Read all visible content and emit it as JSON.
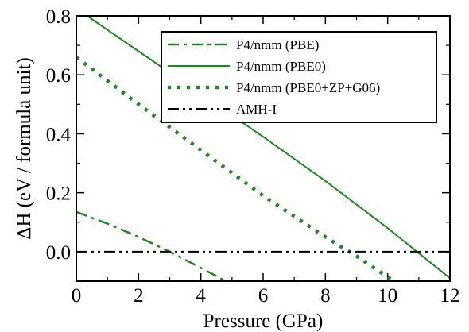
{
  "chart_data": {
    "type": "line",
    "title": "",
    "xlabel": "Pressure (GPa)",
    "ylabel": "ΔH (eV / formula unit)",
    "xlim": [
      0,
      12
    ],
    "ylim": [
      -0.1,
      0.8
    ],
    "xticks": [
      0,
      2,
      4,
      6,
      8,
      10,
      12
    ],
    "yticks": [
      0.0,
      0.2,
      0.4,
      0.6,
      0.8
    ],
    "xtick_labels": [
      "0",
      "2",
      "4",
      "6",
      "8",
      "10",
      "12"
    ],
    "ytick_labels": [
      "0.0",
      "0.2",
      "0.4",
      "0.6",
      "0.8"
    ],
    "grid": false,
    "legend_position": "top-right",
    "series": [
      {
        "name": "P4/nmm (PBE)",
        "color": "#1a8a1a",
        "style": "dash-dot",
        "x": [
          0.0,
          1.0,
          2.0,
          3.0,
          4.0,
          4.8
        ],
        "y": [
          0.135,
          0.095,
          0.05,
          0.0,
          -0.055,
          -0.1
        ]
      },
      {
        "name": "P4/nmm (PBE0)",
        "color": "#1a8a1a",
        "style": "solid",
        "x": [
          0.35,
          2.0,
          4.0,
          6.0,
          8.0,
          10.0,
          12.0
        ],
        "y": [
          0.8,
          0.68,
          0.535,
          0.39,
          0.24,
          0.08,
          -0.09
        ]
      },
      {
        "name": "P4/nmm (PBE0+ZP+G06)",
        "color": "#1a8a1a",
        "style": "dotted",
        "x": [
          0.0,
          2.0,
          4.0,
          6.0,
          8.0,
          9.0,
          10.2
        ],
        "y": [
          0.66,
          0.5,
          0.345,
          0.19,
          0.05,
          -0.015,
          -0.1
        ]
      },
      {
        "name": "AMH-I",
        "color": "#000000",
        "style": "dash-dot-dot",
        "x": [
          0.0,
          12.0
        ],
        "y": [
          0.0,
          0.0
        ]
      }
    ]
  }
}
